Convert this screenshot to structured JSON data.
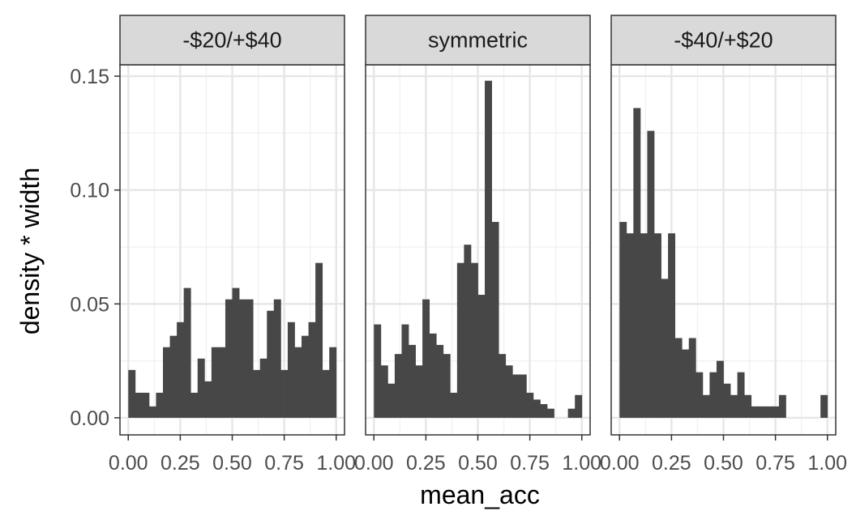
{
  "chart_data": {
    "type": "bar",
    "xlabel": "mean_acc",
    "ylabel": "density * width",
    "xlim": [
      -0.04,
      1.04
    ],
    "ylim": [
      -0.0075,
      0.155
    ],
    "x_ticks": [
      0.0,
      0.25,
      0.5,
      0.75,
      1.0
    ],
    "x_tick_labels": [
      "0.00",
      "0.25",
      "0.50",
      "0.75",
      "1.00"
    ],
    "y_ticks": [
      0.0,
      0.05,
      0.1,
      0.15
    ],
    "y_tick_labels": [
      "0.00",
      "0.05",
      "0.10",
      "0.15"
    ],
    "grid": true,
    "bar_color": "#474747",
    "bin_width": 0.0333,
    "bins_x": [
      0.0,
      0.0333,
      0.0667,
      0.1,
      0.1333,
      0.1667,
      0.2,
      0.2333,
      0.2667,
      0.3,
      0.3333,
      0.3667,
      0.4,
      0.4333,
      0.4667,
      0.5,
      0.5333,
      0.5667,
      0.6,
      0.6333,
      0.6667,
      0.7,
      0.7333,
      0.7667,
      0.8,
      0.8333,
      0.8667,
      0.9,
      0.9333,
      0.9667
    ],
    "panels": [
      {
        "name": "-$20/+$40",
        "values": [
          0.021,
          0.011,
          0.011,
          0.005,
          0.011,
          0.031,
          0.036,
          0.042,
          0.057,
          0.011,
          0.026,
          0.016,
          0.031,
          0.031,
          0.052,
          0.057,
          0.052,
          0.052,
          0.021,
          0.026,
          0.047,
          0.052,
          0.021,
          0.042,
          0.031,
          0.036,
          0.042,
          0.068,
          0.021,
          0.031
        ]
      },
      {
        "name": "symmetric",
        "values": [
          0.041,
          0.023,
          0.015,
          0.028,
          0.041,
          0.032,
          0.023,
          0.052,
          0.037,
          0.032,
          0.028,
          0.011,
          0.068,
          0.076,
          0.068,
          0.054,
          0.148,
          0.086,
          0.028,
          0.023,
          0.019,
          0.019,
          0.011,
          0.008,
          0.006,
          0.004,
          0.0,
          0.0,
          0.004,
          0.01
        ]
      },
      {
        "name": "-$40/+$20",
        "values": [
          0.086,
          0.081,
          0.136,
          0.081,
          0.126,
          0.081,
          0.061,
          0.081,
          0.035,
          0.03,
          0.035,
          0.02,
          0.01,
          0.02,
          0.025,
          0.015,
          0.01,
          0.02,
          0.01,
          0.005,
          0.005,
          0.005,
          0.005,
          0.01,
          0.0,
          0.0,
          0.0,
          0.0,
          0.0,
          0.01
        ]
      }
    ]
  }
}
